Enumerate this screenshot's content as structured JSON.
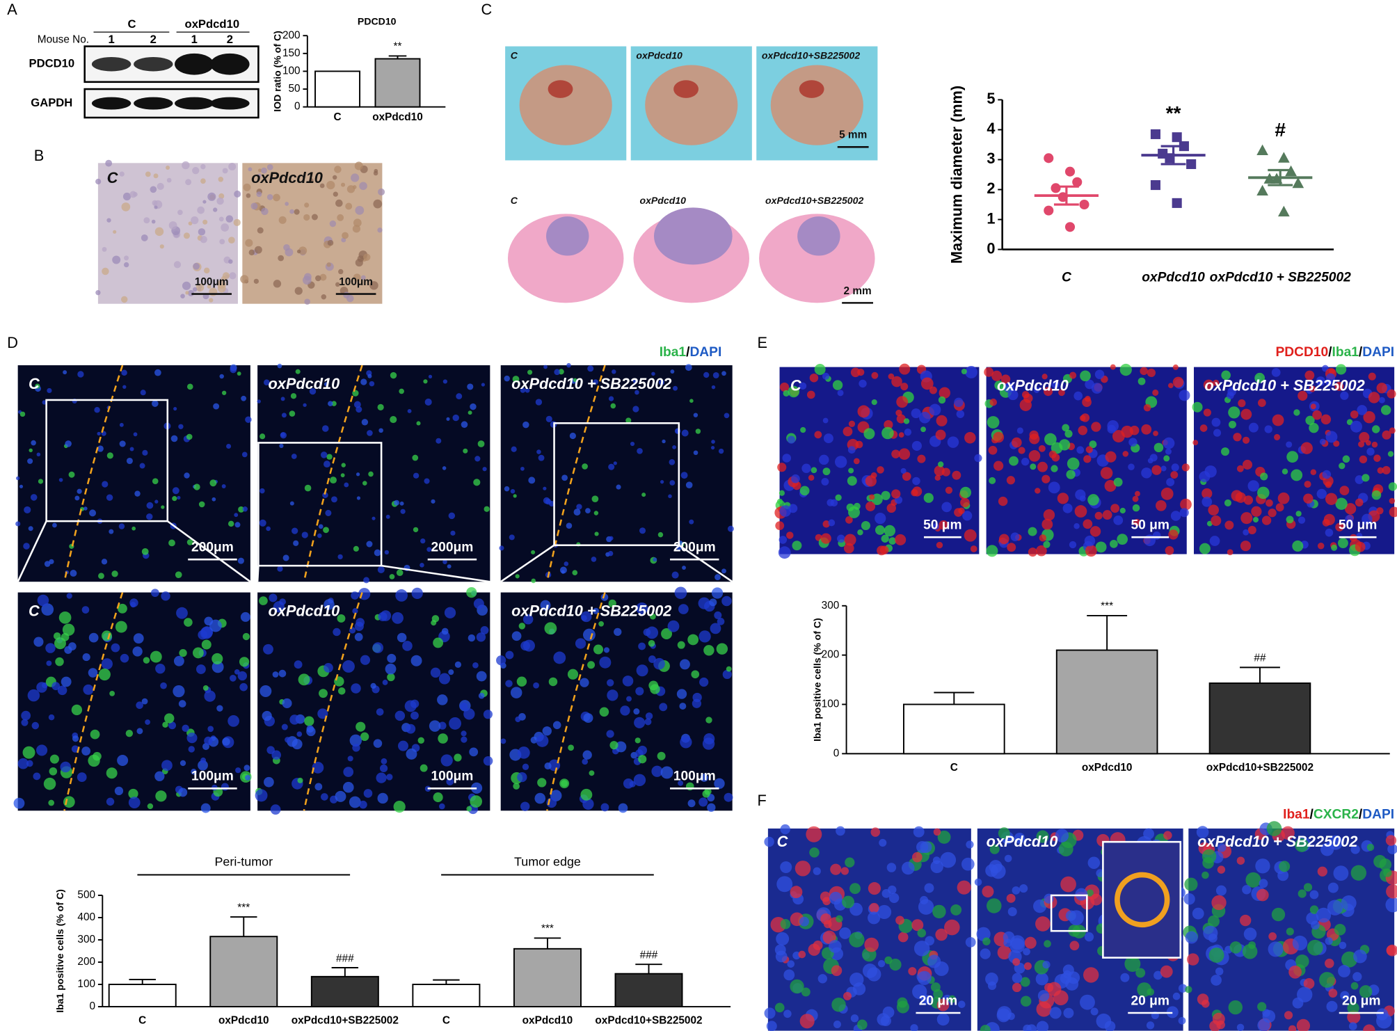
{
  "panels": {
    "labels": [
      "A",
      "B",
      "C",
      "D",
      "E",
      "F"
    ]
  },
  "blot": {
    "groups": [
      "C",
      "oxPdcd10"
    ],
    "mouse_label": "Mouse No.",
    "mice": [
      "1",
      "2",
      "1",
      "2"
    ],
    "proteins": [
      "PDCD10",
      "GAPDH"
    ]
  },
  "ihc": {
    "labels": [
      "C",
      "oxPdcd10"
    ],
    "scale": "100μm"
  },
  "gross": {
    "labels": [
      "C",
      "oxPdcd10",
      "oxPdcd10+SB225002"
    ],
    "scale": "5 mm"
  },
  "sections": {
    "labels": [
      "C",
      "oxPdcd10",
      "oxPdcd10+SB225002"
    ],
    "scale": "2 mm"
  },
  "d_images": {
    "stain": [
      "Iba1",
      "/",
      "DAPI"
    ],
    "labels": [
      "C",
      "oxPdcd10",
      "oxPdcd10 + SB225002"
    ],
    "scale_low": "200μm",
    "scale_high": "100μm"
  },
  "e_images": {
    "stain": [
      "PDCD10",
      "/",
      "Iba1",
      "/",
      "DAPI"
    ],
    "labels": [
      "C",
      "oxPdcd10",
      "oxPdcd10 + SB225002"
    ],
    "scale": "50 μm"
  },
  "f_images": {
    "stain": [
      "Iba1",
      "/",
      "CXCR2",
      "/",
      "DAPI"
    ],
    "labels": [
      "C",
      "oxPdcd10",
      "oxPdcd10 + SB225002"
    ],
    "scale": "20 μm"
  },
  "chart_data": [
    {
      "type": "bar",
      "title": "PDCD10",
      "ylabel": "IOD ratio (% of C)",
      "categories": [
        "C",
        "oxPdcd10"
      ],
      "values": [
        100,
        135
      ],
      "errors": [
        null,
        8
      ],
      "annotations": [
        null,
        "**"
      ],
      "colors": [
        "#ffffff",
        "#a6a6a6"
      ],
      "ylim": [
        0,
        200
      ],
      "yticks": [
        0,
        50,
        100,
        150,
        200
      ]
    },
    {
      "type": "scatter",
      "ylabel": "Maximum  diameter (mm)",
      "categories": [
        "C",
        "oxPdcd10",
        "oxPdcd10 + SB225002"
      ],
      "values": [
        [
          3.05,
          2.6,
          2.25,
          2.05,
          1.75,
          1.5,
          1.3,
          0.75
        ],
        [
          3.85,
          3.75,
          3.45,
          3.2,
          3.05,
          2.85,
          2.15,
          1.55
        ],
        [
          3.3,
          3.05,
          2.6,
          2.35,
          2.35,
          2.2,
          1.95,
          1.25
        ]
      ],
      "means": [
        1.8,
        3.15,
        2.4
      ],
      "errors": [
        0.3,
        0.3,
        0.25
      ],
      "annotations": [
        null,
        "**",
        "#"
      ],
      "colors": [
        "#e0476b",
        "#4b3a8f",
        "#557a5c"
      ],
      "ylim": [
        0,
        5
      ],
      "yticks": [
        0,
        1,
        2,
        3,
        4,
        5
      ]
    },
    {
      "type": "bar",
      "ylabel": "Iba1 positive cells (% of C)",
      "groups": [
        "Peri-tumor",
        "Tumor edge"
      ],
      "categories": [
        "C",
        "oxPdcd10",
        "oxPdcd10+SB225002",
        "C",
        "oxPdcd10",
        "oxPdcd10+SB225002"
      ],
      "values": [
        100,
        315,
        135,
        100,
        260,
        148
      ],
      "errors": [
        22,
        88,
        40,
        20,
        48,
        42
      ],
      "annotations": [
        null,
        "***",
        "###",
        null,
        "***",
        "###"
      ],
      "colors": [
        "#ffffff",
        "#a6a6a6",
        "#333333",
        "#ffffff",
        "#a6a6a6",
        "#333333"
      ],
      "ylim": [
        0,
        500
      ],
      "yticks": [
        0,
        100,
        200,
        300,
        400,
        500
      ]
    },
    {
      "type": "bar",
      "ylabel": "Iba1 positive cells (% of C)",
      "categories": [
        "C",
        "oxPdcd10",
        "oxPdcd10+SB225002"
      ],
      "values": [
        100,
        210,
        143
      ],
      "errors": [
        24,
        70,
        32
      ],
      "annotations": [
        null,
        "***",
        "##"
      ],
      "colors": [
        "#ffffff",
        "#a6a6a6",
        "#333333"
      ],
      "ylim": [
        0,
        300
      ],
      "yticks": [
        0,
        100,
        200,
        300
      ]
    }
  ]
}
